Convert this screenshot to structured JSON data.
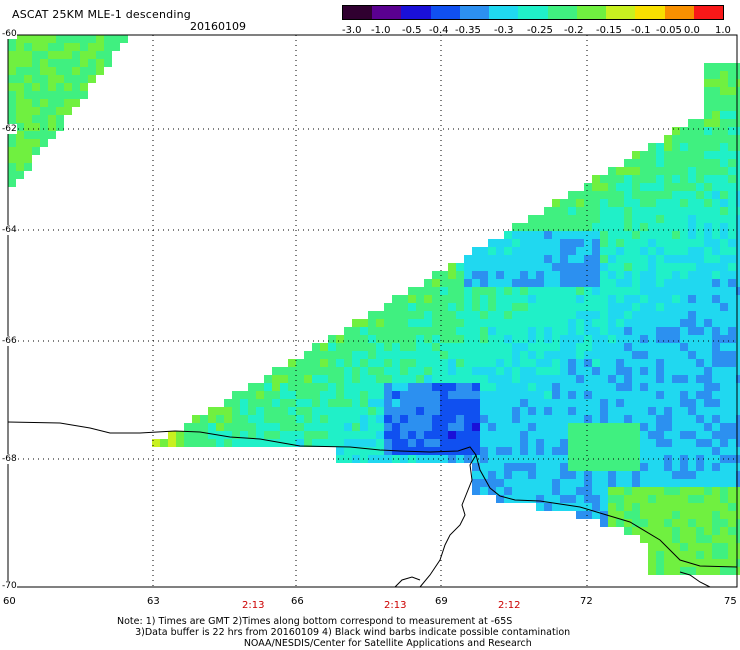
{
  "header": {
    "title": "ASCAT 25KM MLE-1 descending",
    "date": "20160109"
  },
  "colorbar": {
    "labels": [
      "-3.0",
      "-1.0",
      "-0.5",
      "-0.4",
      "-0.35",
      "-0.3",
      "-0.25",
      "-0.2",
      "-0.15",
      "-0.1",
      "-0.05",
      "0.0",
      "1.0"
    ],
    "colors": [
      "#300030",
      "#5a0090",
      "#1a10d8",
      "#1050f0",
      "#2c90f0",
      "#20d8f0",
      "#20f0c8",
      "#40f080",
      "#70f040",
      "#c8f020",
      "#f8e000",
      "#f89000",
      "#f81818"
    ]
  },
  "axes": {
    "lat_labels": [
      "-60",
      "-62",
      "-64",
      "-66",
      "-68",
      "-70"
    ],
    "lon_labels": [
      "60",
      "63",
      "66",
      "69",
      "72",
      "75"
    ]
  },
  "times": [
    "2:13",
    "2:13",
    "2:12"
  ],
  "notes": {
    "line1": "Note: 1) Times are GMT 2)Times along bottom correspond to measurement at -65S",
    "line2": "      3)Data buffer is 22 hrs from 20160109 4) Black wind barbs indicate possible contamination",
    "line3": "                                          NOAA/NESDIS/Center for Satellite Applications and Research"
  }
}
